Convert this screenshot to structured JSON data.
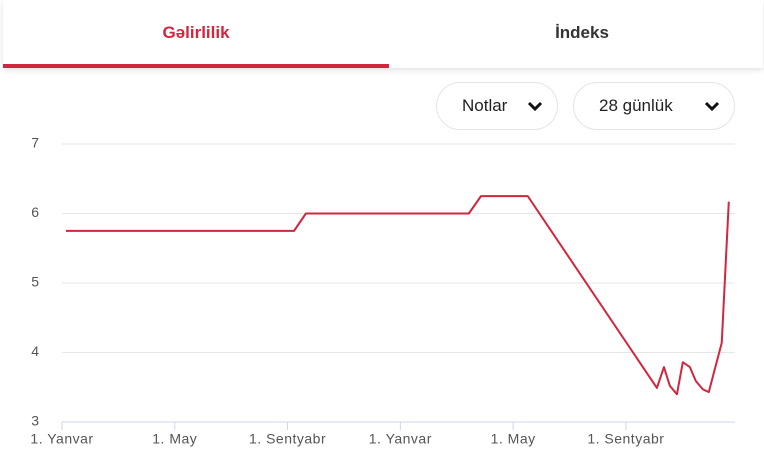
{
  "tabs": [
    {
      "label": "Gəlirlilik",
      "active": true
    },
    {
      "label": "İndeks",
      "active": false
    }
  ],
  "dropdowns": [
    "Notlar",
    "28 günlük"
  ],
  "chart_data": {
    "type": "line",
    "x": [
      0.14,
      8.23,
      8.65,
      14.43,
      14.86,
      16.52,
      21.1,
      21.35,
      21.56,
      21.81,
      22.02,
      22.27,
      22.48,
      22.73,
      22.94,
      23.4,
      23.65
    ],
    "series": [
      {
        "name": "Gəlirlilik",
        "color": "#d0263e",
        "values": [
          5.75,
          5.75,
          6.0,
          6.0,
          6.25,
          6.25,
          3.49,
          3.79,
          3.52,
          3.4,
          3.86,
          3.79,
          3.59,
          3.47,
          3.43,
          4.14,
          6.17
        ]
      }
    ],
    "xlim": [
      0,
      23.87
    ],
    "xticks": [
      {
        "value": 0,
        "label": "1. Yanvar"
      },
      {
        "value": 4,
        "label": "1. May"
      },
      {
        "value": 8,
        "label": "1. Sentyabr"
      },
      {
        "value": 12,
        "label": "1. Yanvar"
      },
      {
        "value": 16,
        "label": "1. May"
      },
      {
        "value": 20,
        "label": "1. Sentyabr"
      }
    ],
    "ylim": [
      3,
      7
    ],
    "yticks": [
      3,
      4,
      5,
      6,
      7
    ],
    "grid": true
  }
}
